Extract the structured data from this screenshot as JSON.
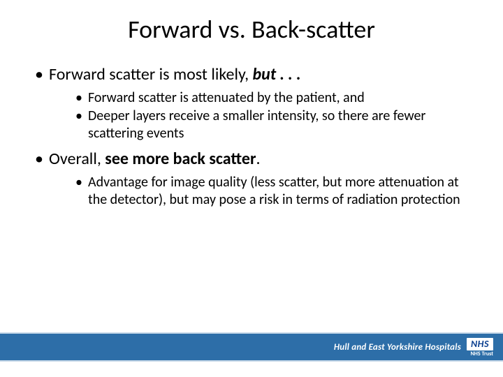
{
  "title": "Forward vs. Back-scatter",
  "bullets": {
    "b1_pre": "Forward scatter is most likely, ",
    "b1_bold": "but . . .",
    "b1a": "Forward scatter is attenuated by the patient, and",
    "b1b": "Deeper layers receive a smaller intensity, so there are fewer scattering events",
    "b2_pre": "Overall, ",
    "b2_bold": "see more back scatter",
    "b2_post": ".",
    "b2a": "Advantage for image quality (less scatter, but more attenuation at the detector), but may pose a risk in terms of radiation protection"
  },
  "footer": {
    "org": "Hull and East Yorkshire Hospitals",
    "nhs": "NHS",
    "trust": "NHS Trust",
    "band_color": "#2d6ea8",
    "band_border": "#c6d8e8",
    "nhs_color": "#0a3e8f"
  }
}
